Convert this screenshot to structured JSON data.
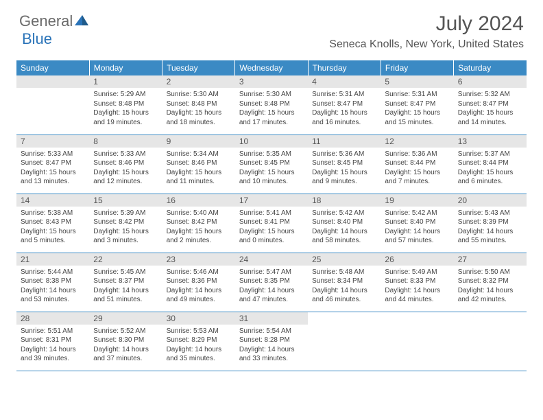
{
  "logo": {
    "part1": "General",
    "part2": "Blue"
  },
  "title": "July 2024",
  "location": "Seneca Knolls, New York, United States",
  "day_headers": [
    "Sunday",
    "Monday",
    "Tuesday",
    "Wednesday",
    "Thursday",
    "Friday",
    "Saturday"
  ],
  "colors": {
    "header_bg": "#3b8ac4",
    "header_text": "#ffffff",
    "daynum_bg": "#e6e6e6",
    "border": "#3b8ac4",
    "logo_blue": "#2a73b8"
  },
  "first_weekday_index": 1,
  "days": [
    {
      "n": 1,
      "sunrise": "5:29 AM",
      "sunset": "8:48 PM",
      "daylight": "15 hours and 19 minutes."
    },
    {
      "n": 2,
      "sunrise": "5:30 AM",
      "sunset": "8:48 PM",
      "daylight": "15 hours and 18 minutes."
    },
    {
      "n": 3,
      "sunrise": "5:30 AM",
      "sunset": "8:48 PM",
      "daylight": "15 hours and 17 minutes."
    },
    {
      "n": 4,
      "sunrise": "5:31 AM",
      "sunset": "8:47 PM",
      "daylight": "15 hours and 16 minutes."
    },
    {
      "n": 5,
      "sunrise": "5:31 AM",
      "sunset": "8:47 PM",
      "daylight": "15 hours and 15 minutes."
    },
    {
      "n": 6,
      "sunrise": "5:32 AM",
      "sunset": "8:47 PM",
      "daylight": "15 hours and 14 minutes."
    },
    {
      "n": 7,
      "sunrise": "5:33 AM",
      "sunset": "8:47 PM",
      "daylight": "15 hours and 13 minutes."
    },
    {
      "n": 8,
      "sunrise": "5:33 AM",
      "sunset": "8:46 PM",
      "daylight": "15 hours and 12 minutes."
    },
    {
      "n": 9,
      "sunrise": "5:34 AM",
      "sunset": "8:46 PM",
      "daylight": "15 hours and 11 minutes."
    },
    {
      "n": 10,
      "sunrise": "5:35 AM",
      "sunset": "8:45 PM",
      "daylight": "15 hours and 10 minutes."
    },
    {
      "n": 11,
      "sunrise": "5:36 AM",
      "sunset": "8:45 PM",
      "daylight": "15 hours and 9 minutes."
    },
    {
      "n": 12,
      "sunrise": "5:36 AM",
      "sunset": "8:44 PM",
      "daylight": "15 hours and 7 minutes."
    },
    {
      "n": 13,
      "sunrise": "5:37 AM",
      "sunset": "8:44 PM",
      "daylight": "15 hours and 6 minutes."
    },
    {
      "n": 14,
      "sunrise": "5:38 AM",
      "sunset": "8:43 PM",
      "daylight": "15 hours and 5 minutes."
    },
    {
      "n": 15,
      "sunrise": "5:39 AM",
      "sunset": "8:42 PM",
      "daylight": "15 hours and 3 minutes."
    },
    {
      "n": 16,
      "sunrise": "5:40 AM",
      "sunset": "8:42 PM",
      "daylight": "15 hours and 2 minutes."
    },
    {
      "n": 17,
      "sunrise": "5:41 AM",
      "sunset": "8:41 PM",
      "daylight": "15 hours and 0 minutes."
    },
    {
      "n": 18,
      "sunrise": "5:42 AM",
      "sunset": "8:40 PM",
      "daylight": "14 hours and 58 minutes."
    },
    {
      "n": 19,
      "sunrise": "5:42 AM",
      "sunset": "8:40 PM",
      "daylight": "14 hours and 57 minutes."
    },
    {
      "n": 20,
      "sunrise": "5:43 AM",
      "sunset": "8:39 PM",
      "daylight": "14 hours and 55 minutes."
    },
    {
      "n": 21,
      "sunrise": "5:44 AM",
      "sunset": "8:38 PM",
      "daylight": "14 hours and 53 minutes."
    },
    {
      "n": 22,
      "sunrise": "5:45 AM",
      "sunset": "8:37 PM",
      "daylight": "14 hours and 51 minutes."
    },
    {
      "n": 23,
      "sunrise": "5:46 AM",
      "sunset": "8:36 PM",
      "daylight": "14 hours and 49 minutes."
    },
    {
      "n": 24,
      "sunrise": "5:47 AM",
      "sunset": "8:35 PM",
      "daylight": "14 hours and 47 minutes."
    },
    {
      "n": 25,
      "sunrise": "5:48 AM",
      "sunset": "8:34 PM",
      "daylight": "14 hours and 46 minutes."
    },
    {
      "n": 26,
      "sunrise": "5:49 AM",
      "sunset": "8:33 PM",
      "daylight": "14 hours and 44 minutes."
    },
    {
      "n": 27,
      "sunrise": "5:50 AM",
      "sunset": "8:32 PM",
      "daylight": "14 hours and 42 minutes."
    },
    {
      "n": 28,
      "sunrise": "5:51 AM",
      "sunset": "8:31 PM",
      "daylight": "14 hours and 39 minutes."
    },
    {
      "n": 29,
      "sunrise": "5:52 AM",
      "sunset": "8:30 PM",
      "daylight": "14 hours and 37 minutes."
    },
    {
      "n": 30,
      "sunrise": "5:53 AM",
      "sunset": "8:29 PM",
      "daylight": "14 hours and 35 minutes."
    },
    {
      "n": 31,
      "sunrise": "5:54 AM",
      "sunset": "8:28 PM",
      "daylight": "14 hours and 33 minutes."
    }
  ],
  "labels": {
    "sunrise": "Sunrise:",
    "sunset": "Sunset:",
    "daylight": "Daylight:"
  }
}
